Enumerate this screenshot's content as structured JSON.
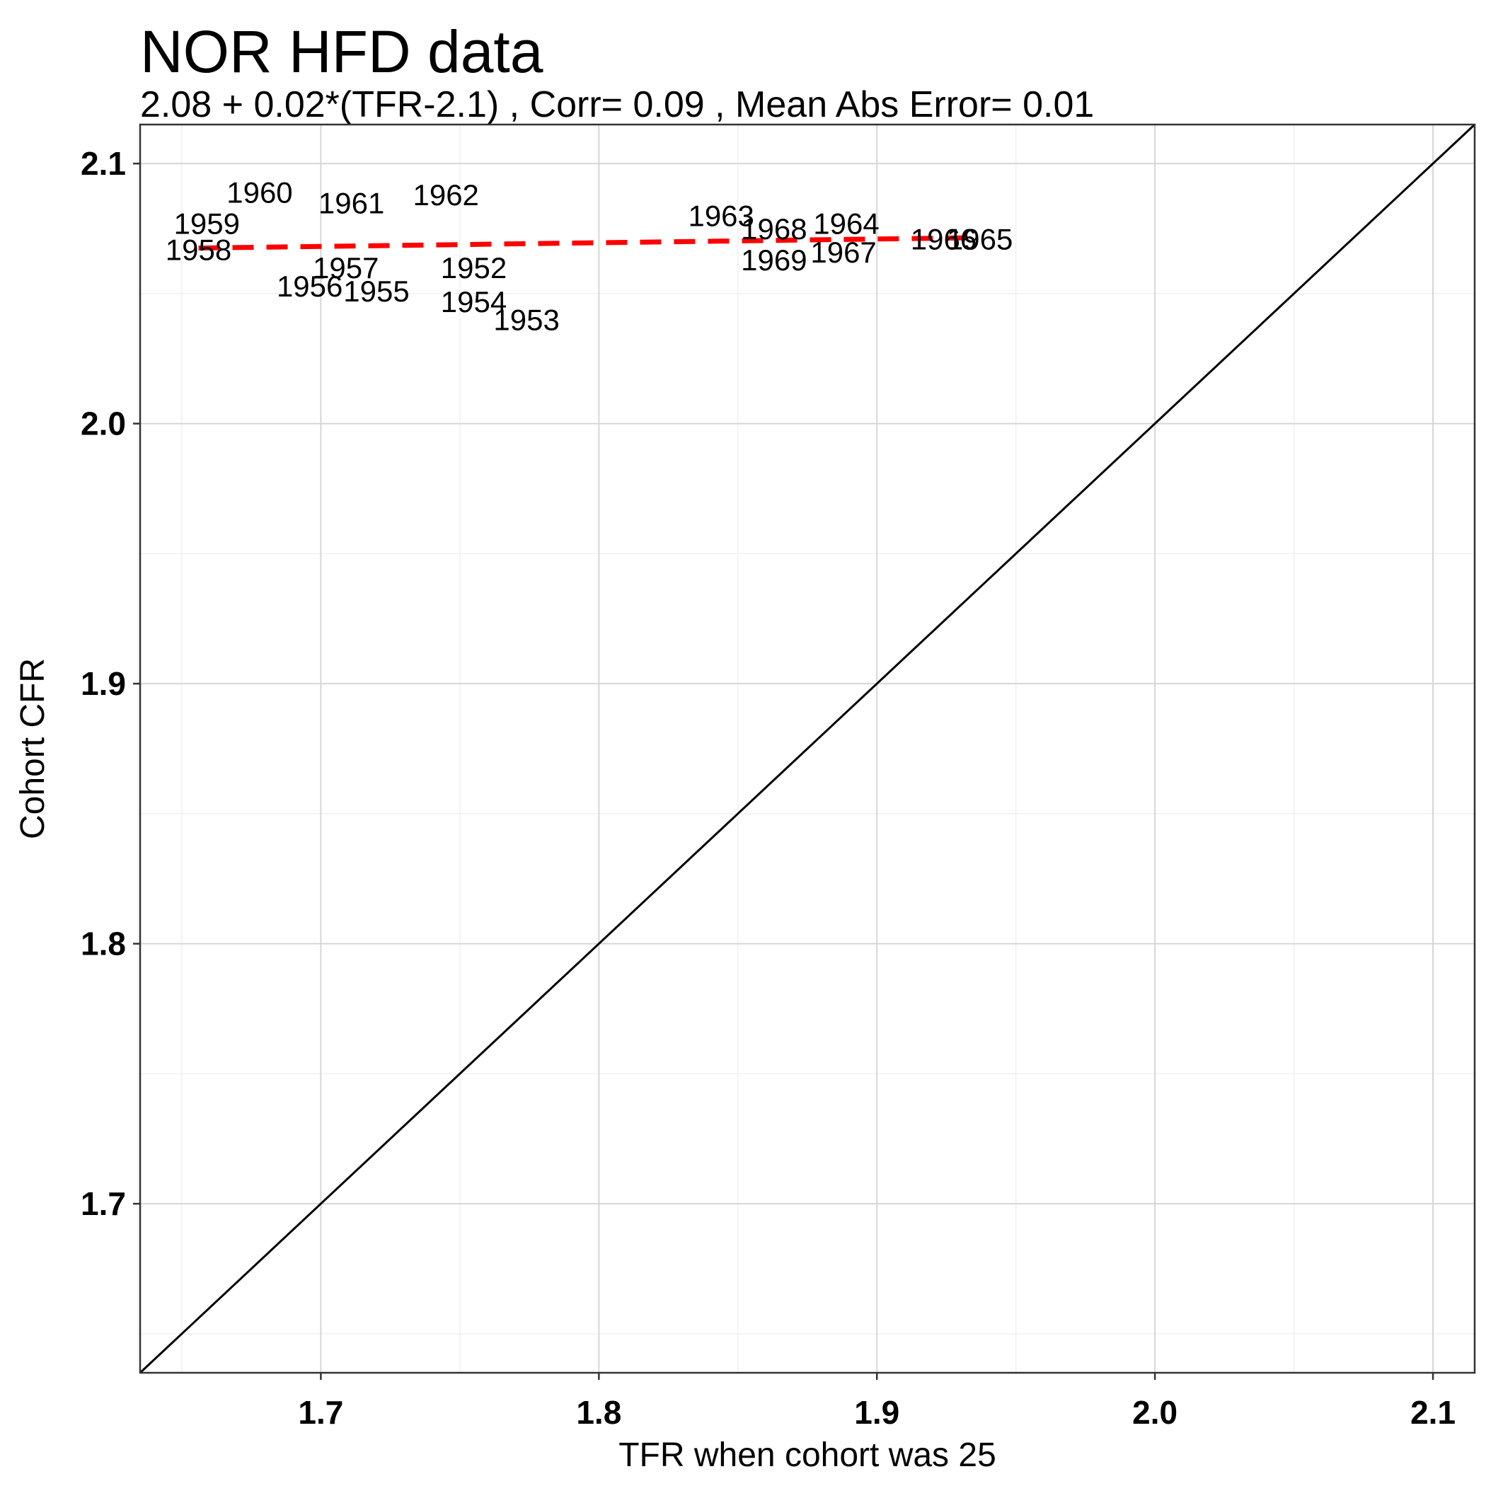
{
  "chart_data": {
    "type": "scatter",
    "title": "NOR HFD data",
    "subtitle": "2.08 + 0.02*(TFR-2.1)  , Corr= 0.09 , Mean Abs Error= 0.01",
    "xlabel": "TFR when cohort was 25",
    "ylabel": "Cohort CFR",
    "xlim": [
      1.635,
      2.115
    ],
    "ylim": [
      1.635,
      2.115
    ],
    "x_ticks": [
      1.7,
      1.8,
      1.9,
      2.0,
      2.1
    ],
    "y_ticks": [
      1.7,
      1.8,
      1.9,
      2.0,
      2.1
    ],
    "x_tick_labels": [
      "1.7",
      "1.8",
      "1.9",
      "2.0",
      "2.1"
    ],
    "y_tick_labels": [
      "1.7",
      "1.8",
      "1.9",
      "2.0",
      "2.1"
    ],
    "grid": true,
    "points": [
      {
        "label": "1952",
        "x": 1.755,
        "y": 2.06
      },
      {
        "label": "1953",
        "x": 1.774,
        "y": 2.04
      },
      {
        "label": "1954",
        "x": 1.755,
        "y": 2.047
      },
      {
        "label": "1955",
        "x": 1.72,
        "y": 2.051
      },
      {
        "label": "1956",
        "x": 1.696,
        "y": 2.053
      },
      {
        "label": "1957",
        "x": 1.709,
        "y": 2.06
      },
      {
        "label": "1958",
        "x": 1.656,
        "y": 2.067
      },
      {
        "label": "1959",
        "x": 1.659,
        "y": 2.077
      },
      {
        "label": "1960",
        "x": 1.678,
        "y": 2.089
      },
      {
        "label": "1961",
        "x": 1.711,
        "y": 2.085
      },
      {
        "label": "1962",
        "x": 1.745,
        "y": 2.088
      },
      {
        "label": "1963",
        "x": 1.844,
        "y": 2.08
      },
      {
        "label": "1964",
        "x": 1.889,
        "y": 2.077
      },
      {
        "label": "1965",
        "x": 1.937,
        "y": 2.071
      },
      {
        "label": "1966",
        "x": 1.924,
        "y": 2.071
      },
      {
        "label": "1967",
        "x": 1.888,
        "y": 2.066
      },
      {
        "label": "1968",
        "x": 1.863,
        "y": 2.075
      },
      {
        "label": "1969",
        "x": 1.863,
        "y": 2.063
      }
    ],
    "fit_line": {
      "x": [
        1.656,
        1.937
      ],
      "y": [
        2.0675,
        2.0715
      ],
      "color": "#ff0000",
      "style": "dashed"
    },
    "identity_line": {
      "x": [
        1.635,
        2.115
      ],
      "y": [
        1.635,
        2.115
      ],
      "color": "#000000",
      "style": "solid"
    }
  }
}
